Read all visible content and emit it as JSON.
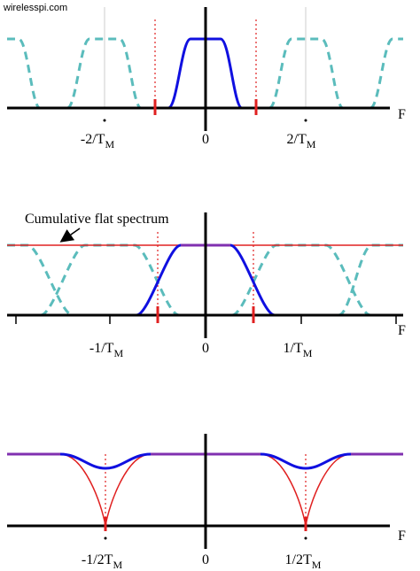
{
  "watermark": "wirelesspi.com",
  "panels": [
    {
      "axis_label": "F",
      "ticks": [
        {
          "text": "-2/T",
          "sub": "M"
        },
        {
          "text": "0"
        },
        {
          "text": "2/T",
          "sub": "M"
        }
      ]
    },
    {
      "axis_label": "F",
      "annotation": "Cumulative flat spectrum",
      "ticks": [
        {
          "text": "-1/T",
          "sub": "M"
        },
        {
          "text": "0"
        },
        {
          "text": "1/T",
          "sub": "M"
        }
      ]
    },
    {
      "axis_label": "F",
      "ticks": [
        {
          "text": "-1/2T",
          "sub": "M"
        },
        {
          "text": "0"
        },
        {
          "text": "1/2T",
          "sub": "M"
        }
      ]
    }
  ]
}
